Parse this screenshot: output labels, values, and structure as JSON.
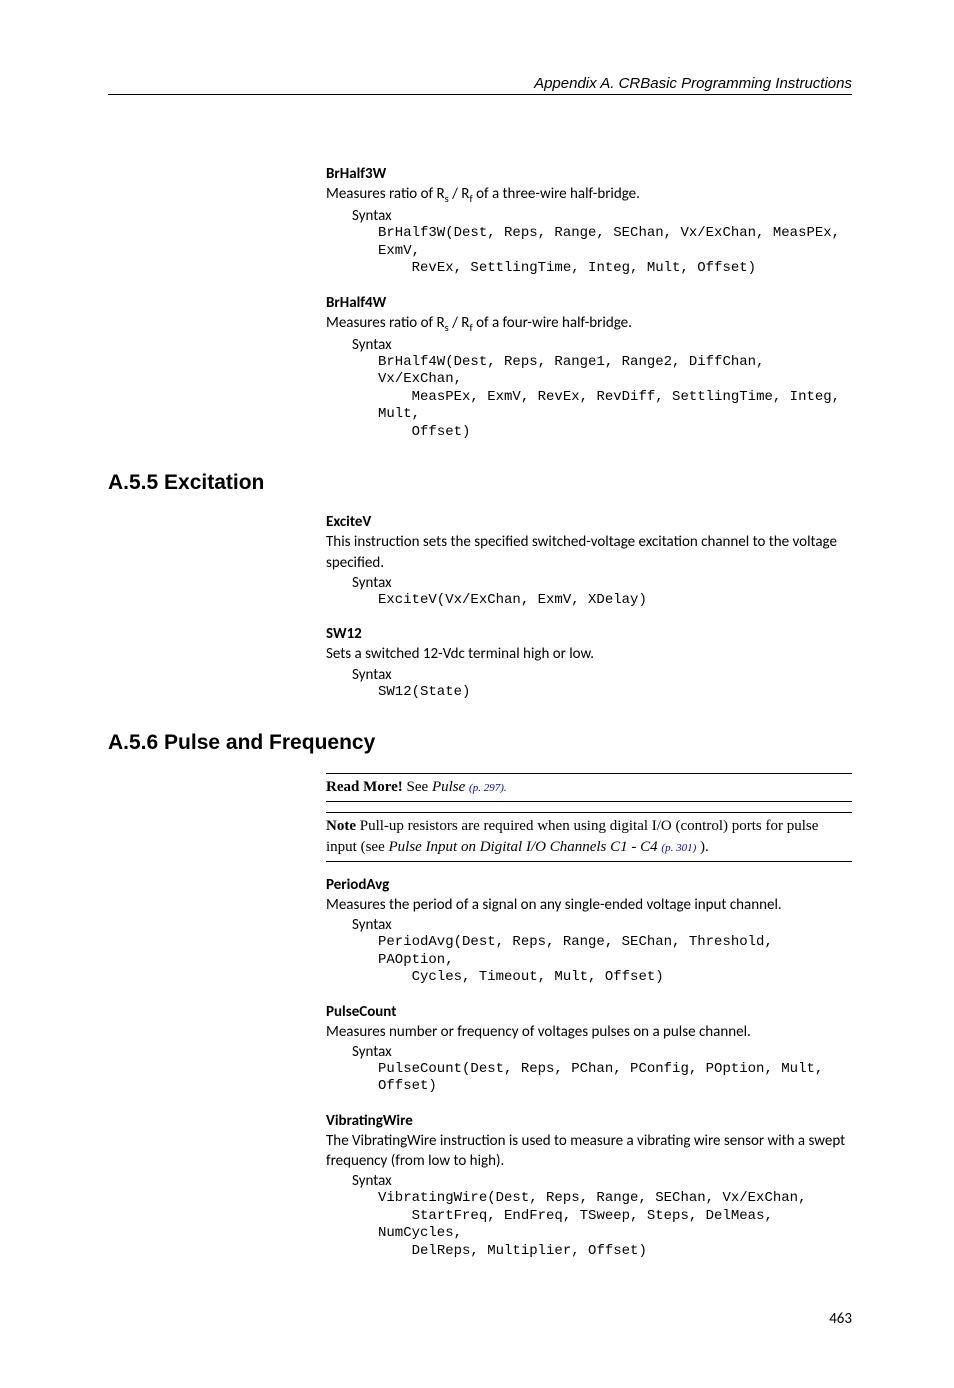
{
  "header": "Appendix A.  CRBasic Programming Instructions",
  "sections": [
    {
      "heading": null,
      "instructions": [
        {
          "name": "BrHalf3W",
          "desc_html": "Measures ratio of R<sub>s</sub> / R<sub>f</sub> of a three-wire half-bridge.",
          "syntax_label": "Syntax",
          "code": "BrHalf3W(Dest, Reps, Range, SEChan, Vx/ExChan, MeasPEx, ExmV,\n    RevEx, SettlingTime, Integ, Mult, Offset)"
        },
        {
          "name": "BrHalf4W",
          "desc_html": "Measures ratio of R<sub>s</sub> / R<sub>f</sub> of a four-wire half-bridge.",
          "syntax_label": "Syntax",
          "code": "BrHalf4W(Dest, Reps, Range1, Range2, DiffChan, Vx/ExChan,\n    MeasPEx, ExmV, RevEx, RevDiff, SettlingTime, Integ, Mult,\n    Offset)"
        }
      ]
    },
    {
      "heading": "A.5.5 Excitation",
      "instructions": [
        {
          "name": "ExciteV",
          "desc_html": "This instruction sets the specified switched-voltage excitation channel to the voltage specified.",
          "syntax_label": "Syntax",
          "code": "ExciteV(Vx/ExChan, ExmV, XDelay)"
        },
        {
          "name": "SW12",
          "desc_html": "Sets a switched 12-Vdc terminal high or low.",
          "syntax_label": "Syntax",
          "code": "SW12(State)"
        }
      ]
    },
    {
      "heading": "A.5.6 Pulse and Frequency",
      "readmore": {
        "lead": "Read More!",
        "rest": " See ",
        "italic": "Pulse",
        "pageref": "(p. 297)",
        "after": "."
      },
      "note": {
        "lead": "Note",
        "rest": "  Pull-up resistors are required when using digital I/O (control) ports for pulse input (see ",
        "italic": "Pulse Input on Digital I/O Channels C1 - C4",
        "pageref": "(p. 301)",
        "after": " )."
      },
      "instructions": [
        {
          "name": "PeriodAvg",
          "desc_html": "Measures the period of a signal on any single-ended voltage input channel.",
          "syntax_label": "Syntax",
          "code": "PeriodAvg(Dest, Reps, Range, SEChan, Threshold, PAOption,\n    Cycles, Timeout, Mult, Offset)"
        },
        {
          "name": "PulseCount",
          "desc_html": "Measures number or frequency of voltages pulses on a pulse channel.",
          "syntax_label": "Syntax",
          "code": "PulseCount(Dest, Reps, PChan, PConfig, POption, Mult, Offset)"
        },
        {
          "name": "VibratingWire",
          "desc_html": "The VibratingWire instruction is used to measure a vibrating wire sensor with a swept frequency (from low to high).",
          "syntax_label": "Syntax",
          "code": "VibratingWire(Dest, Reps, Range, SEChan, Vx/ExChan,\n    StartFreq, EndFreq, TSweep, Steps, DelMeas, NumCycles,\n    DelReps, Multiplier, Offset)"
        }
      ]
    }
  ],
  "page_number": "463"
}
